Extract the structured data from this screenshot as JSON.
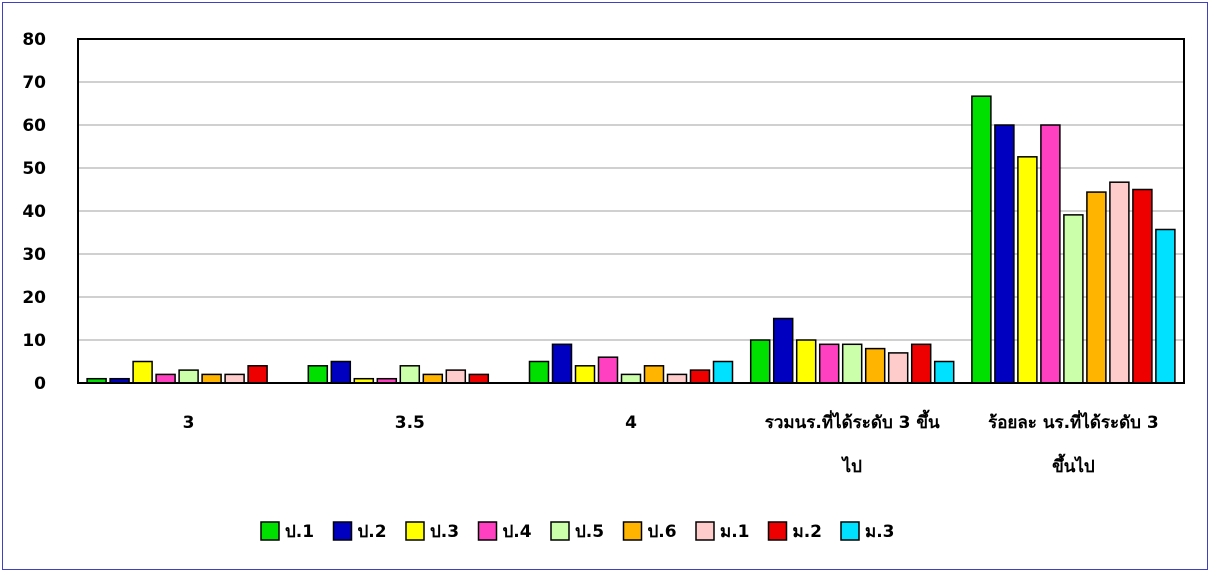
{
  "chart_data": {
    "type": "bar",
    "title": "",
    "xlabel": "",
    "ylabel": "",
    "ylim": [
      0,
      80
    ],
    "yticks": [
      0,
      10,
      20,
      30,
      40,
      50,
      60,
      70,
      80
    ],
    "grid": true,
    "legend_position": "bottom",
    "categories": [
      "3",
      "3.5",
      "4",
      "รวมนร.ที่ได้ระดับ 3 ขึ้นไป",
      "ร้อยละ นร.ที่ได้ระดับ 3 ขึ้นไป"
    ],
    "category_lines": [
      [
        "3"
      ],
      [
        "3.5"
      ],
      [
        "4"
      ],
      [
        "รวมนร.ที่ได้ระดับ 3 ขึ้น",
        "ไป"
      ],
      [
        "ร้อยละ นร.ที่ได้ระดับ 3",
        "ขึ้นไป"
      ]
    ],
    "series": [
      {
        "name": "ป.1",
        "color": "#00e000",
        "values": [
          1,
          4,
          5,
          10,
          66.7
        ]
      },
      {
        "name": "ป.2",
        "color": "#0000c0",
        "values": [
          1,
          5,
          9,
          15,
          60
        ]
      },
      {
        "name": "ป.3",
        "color": "#ffff00",
        "values": [
          5,
          1,
          4,
          10,
          52.6
        ]
      },
      {
        "name": "ป.4",
        "color": "#ff40c0",
        "values": [
          2,
          1,
          6,
          9,
          60
        ]
      },
      {
        "name": "ป.5",
        "color": "#ccffaa",
        "values": [
          3,
          4,
          2,
          9,
          39.1
        ]
      },
      {
        "name": "ป.6",
        "color": "#ffb400",
        "values": [
          2,
          2,
          4,
          8,
          44.4
        ]
      },
      {
        "name": "ม.1",
        "color": "#ffcccc",
        "values": [
          2,
          3,
          2,
          7,
          46.7
        ]
      },
      {
        "name": "ม.2",
        "color": "#ee0000",
        "values": [
          4,
          2,
          3,
          9,
          45
        ]
      },
      {
        "name": "ม.3",
        "color": "#00e0ff",
        "values": [
          0,
          0,
          5,
          5,
          35.7
        ]
      }
    ]
  }
}
